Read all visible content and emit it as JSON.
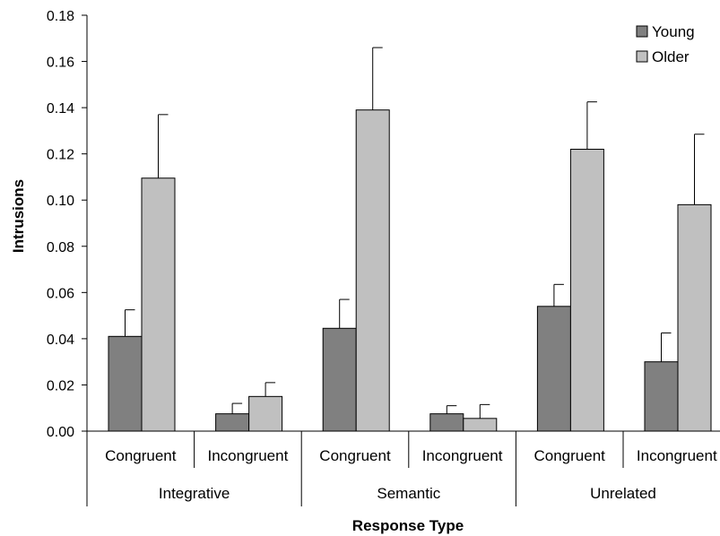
{
  "chart_data": {
    "type": "bar",
    "title": "",
    "xlabel": "Response Type",
    "ylabel": "Intrusions",
    "ylim": [
      0,
      0.18
    ],
    "yticks": [
      "0.00",
      "0.02",
      "0.04",
      "0.06",
      "0.08",
      "0.10",
      "0.12",
      "0.14",
      "0.16",
      "0.18"
    ],
    "groups": [
      "Integrative",
      "Semantic",
      "Unrelated"
    ],
    "categories": [
      "Congruent",
      "Incongruent",
      "Congruent",
      "Incongruent",
      "Congruent",
      "Incongruent"
    ],
    "series": [
      {
        "name": "Young",
        "color": "#808080",
        "values": [
          0.041,
          0.0075,
          0.0445,
          0.0075,
          0.054,
          0.03
        ],
        "errors": [
          0.0115,
          0.0045,
          0.0125,
          0.0035,
          0.0095,
          0.0125
        ]
      },
      {
        "name": "Older",
        "color": "#c0c0c0",
        "values": [
          0.1095,
          0.015,
          0.139,
          0.0055,
          0.122,
          0.098
        ],
        "errors": [
          0.0275,
          0.006,
          0.027,
          0.006,
          0.0205,
          0.0305
        ]
      }
    ],
    "grid": false,
    "legend_position": "top-right"
  }
}
